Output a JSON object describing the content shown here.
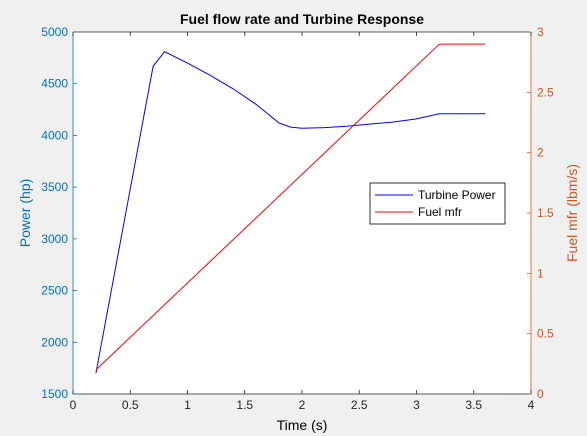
{
  "chart_data": {
    "type": "line",
    "title": "Fuel flow rate and Turbine Response",
    "xlabel": "Time (s)",
    "ylabel_left": "Power (hp)",
    "ylabel_right": "Fuel mfr (lbm/s)",
    "xlim": [
      0,
      4
    ],
    "ylim_left": [
      1500,
      5000
    ],
    "ylim_right": [
      0,
      3
    ],
    "xticks": [
      "0",
      "0.5",
      "1",
      "1.5",
      "2",
      "2.5",
      "3",
      "3.5",
      "4"
    ],
    "yticks_left": [
      "1500",
      "2000",
      "2500",
      "3000",
      "3500",
      "4000",
      "4500",
      "5000"
    ],
    "yticks_right": [
      "0",
      "0.5",
      "1",
      "1.5",
      "2",
      "2.5",
      "3"
    ],
    "grid": false,
    "legend_position": "right-middle",
    "series": [
      {
        "name": "Turbine Power",
        "axis": "left",
        "color": "#0000ff",
        "x": [
          0.2,
          0.7,
          0.8,
          1.0,
          1.2,
          1.4,
          1.6,
          1.8,
          1.9,
          2.0,
          2.2,
          2.4,
          2.6,
          2.8,
          3.0,
          3.2,
          3.6
        ],
        "y": [
          1700,
          4670,
          4810,
          4700,
          4580,
          4450,
          4300,
          4120,
          4080,
          4070,
          4075,
          4090,
          4110,
          4130,
          4160,
          4210,
          4210
        ]
      },
      {
        "name": "Fuel mfr",
        "axis": "right",
        "color": "#ff0000",
        "x": [
          0.2,
          3.2,
          3.6
        ],
        "y": [
          0.2,
          2.9,
          2.9
        ]
      }
    ]
  },
  "colors": {
    "left_axis": "#0072bd",
    "right_axis": "#d95319",
    "background": "#f0f0f0",
    "plot_area": "#ffffff"
  }
}
